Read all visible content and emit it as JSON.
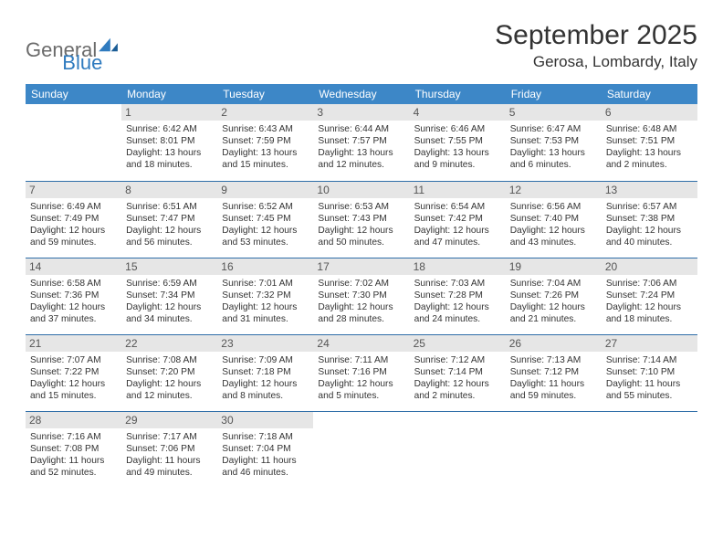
{
  "logo": {
    "part1": "General",
    "part2": "Blue"
  },
  "title": "September 2025",
  "location": "Gerosa, Lombardy, Italy",
  "colors": {
    "header_bg": "#3d87c7",
    "header_text": "#ffffff",
    "daynum_bg": "#e6e6e6",
    "cell_border": "#2f6ea8",
    "logo_gray": "#6b6b6b",
    "logo_blue": "#2f7bbf"
  },
  "weekdays": [
    "Sunday",
    "Monday",
    "Tuesday",
    "Wednesday",
    "Thursday",
    "Friday",
    "Saturday"
  ],
  "weeks": [
    [
      null,
      {
        "n": "1",
        "sr": "6:42 AM",
        "ss": "8:01 PM",
        "dl": "13 hours and 18 minutes."
      },
      {
        "n": "2",
        "sr": "6:43 AM",
        "ss": "7:59 PM",
        "dl": "13 hours and 15 minutes."
      },
      {
        "n": "3",
        "sr": "6:44 AM",
        "ss": "7:57 PM",
        "dl": "13 hours and 12 minutes."
      },
      {
        "n": "4",
        "sr": "6:46 AM",
        "ss": "7:55 PM",
        "dl": "13 hours and 9 minutes."
      },
      {
        "n": "5",
        "sr": "6:47 AM",
        "ss": "7:53 PM",
        "dl": "13 hours and 6 minutes."
      },
      {
        "n": "6",
        "sr": "6:48 AM",
        "ss": "7:51 PM",
        "dl": "13 hours and 2 minutes."
      }
    ],
    [
      {
        "n": "7",
        "sr": "6:49 AM",
        "ss": "7:49 PM",
        "dl": "12 hours and 59 minutes."
      },
      {
        "n": "8",
        "sr": "6:51 AM",
        "ss": "7:47 PM",
        "dl": "12 hours and 56 minutes."
      },
      {
        "n": "9",
        "sr": "6:52 AM",
        "ss": "7:45 PM",
        "dl": "12 hours and 53 minutes."
      },
      {
        "n": "10",
        "sr": "6:53 AM",
        "ss": "7:43 PM",
        "dl": "12 hours and 50 minutes."
      },
      {
        "n": "11",
        "sr": "6:54 AM",
        "ss": "7:42 PM",
        "dl": "12 hours and 47 minutes."
      },
      {
        "n": "12",
        "sr": "6:56 AM",
        "ss": "7:40 PM",
        "dl": "12 hours and 43 minutes."
      },
      {
        "n": "13",
        "sr": "6:57 AM",
        "ss": "7:38 PM",
        "dl": "12 hours and 40 minutes."
      }
    ],
    [
      {
        "n": "14",
        "sr": "6:58 AM",
        "ss": "7:36 PM",
        "dl": "12 hours and 37 minutes."
      },
      {
        "n": "15",
        "sr": "6:59 AM",
        "ss": "7:34 PM",
        "dl": "12 hours and 34 minutes."
      },
      {
        "n": "16",
        "sr": "7:01 AM",
        "ss": "7:32 PM",
        "dl": "12 hours and 31 minutes."
      },
      {
        "n": "17",
        "sr": "7:02 AM",
        "ss": "7:30 PM",
        "dl": "12 hours and 28 minutes."
      },
      {
        "n": "18",
        "sr": "7:03 AM",
        "ss": "7:28 PM",
        "dl": "12 hours and 24 minutes."
      },
      {
        "n": "19",
        "sr": "7:04 AM",
        "ss": "7:26 PM",
        "dl": "12 hours and 21 minutes."
      },
      {
        "n": "20",
        "sr": "7:06 AM",
        "ss": "7:24 PM",
        "dl": "12 hours and 18 minutes."
      }
    ],
    [
      {
        "n": "21",
        "sr": "7:07 AM",
        "ss": "7:22 PM",
        "dl": "12 hours and 15 minutes."
      },
      {
        "n": "22",
        "sr": "7:08 AM",
        "ss": "7:20 PM",
        "dl": "12 hours and 12 minutes."
      },
      {
        "n": "23",
        "sr": "7:09 AM",
        "ss": "7:18 PM",
        "dl": "12 hours and 8 minutes."
      },
      {
        "n": "24",
        "sr": "7:11 AM",
        "ss": "7:16 PM",
        "dl": "12 hours and 5 minutes."
      },
      {
        "n": "25",
        "sr": "7:12 AM",
        "ss": "7:14 PM",
        "dl": "12 hours and 2 minutes."
      },
      {
        "n": "26",
        "sr": "7:13 AM",
        "ss": "7:12 PM",
        "dl": "11 hours and 59 minutes."
      },
      {
        "n": "27",
        "sr": "7:14 AM",
        "ss": "7:10 PM",
        "dl": "11 hours and 55 minutes."
      }
    ],
    [
      {
        "n": "28",
        "sr": "7:16 AM",
        "ss": "7:08 PM",
        "dl": "11 hours and 52 minutes."
      },
      {
        "n": "29",
        "sr": "7:17 AM",
        "ss": "7:06 PM",
        "dl": "11 hours and 49 minutes."
      },
      {
        "n": "30",
        "sr": "7:18 AM",
        "ss": "7:04 PM",
        "dl": "11 hours and 46 minutes."
      },
      null,
      null,
      null,
      null
    ]
  ],
  "labels": {
    "sunrise": "Sunrise:",
    "sunset": "Sunset:",
    "daylight": "Daylight:"
  }
}
